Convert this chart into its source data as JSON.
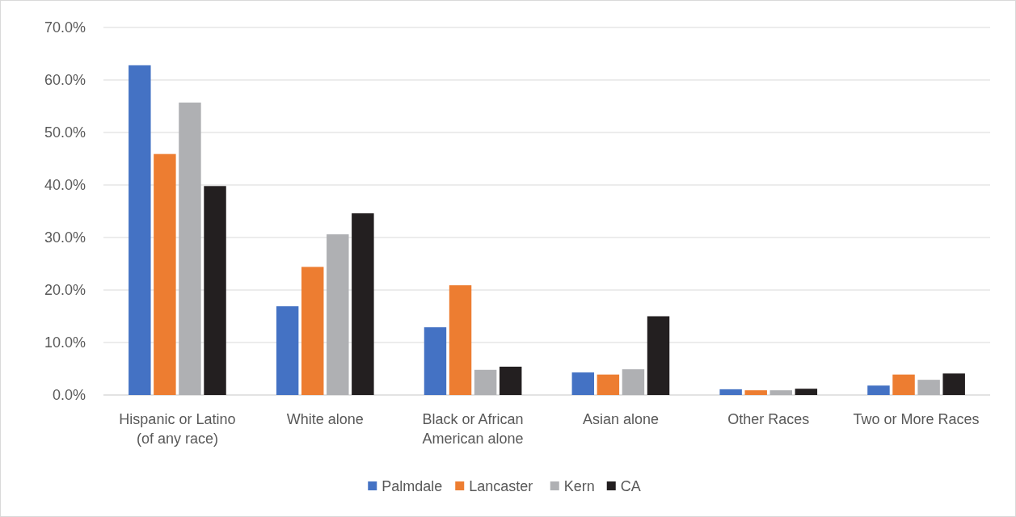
{
  "chart_data": {
    "type": "bar",
    "categories": [
      "Hispanic or Latino (of any race)",
      "White alone",
      "Black or African American alone",
      "Asian alone",
      "Other Races",
      "Two or More Races"
    ],
    "series": [
      {
        "name": "Palmdale",
        "color": "#4472c4",
        "values": [
          62.8,
          16.9,
          12.9,
          4.3,
          1.1,
          1.8
        ]
      },
      {
        "name": "Lancaster",
        "color": "#ed7d31",
        "values": [
          45.9,
          24.4,
          20.9,
          3.9,
          0.9,
          3.9
        ]
      },
      {
        "name": "Kern",
        "color": "#afb0b3",
        "values": [
          55.7,
          30.6,
          4.8,
          4.9,
          0.9,
          2.9
        ]
      },
      {
        "name": "CA",
        "color": "#231f20",
        "values": [
          39.8,
          34.6,
          5.4,
          15.0,
          1.2,
          4.1
        ]
      }
    ],
    "ylim": [
      0,
      70
    ],
    "yticks": [
      {
        "value": 0,
        "label": "0.0%"
      },
      {
        "value": 10,
        "label": "10.0%"
      },
      {
        "value": 20,
        "label": "20.0%"
      },
      {
        "value": 30,
        "label": "30.0%"
      },
      {
        "value": 40,
        "label": "40.0%"
      },
      {
        "value": 50,
        "label": "50.0%"
      },
      {
        "value": 60,
        "label": "60.0%"
      },
      {
        "value": 70,
        "label": "70.0%"
      }
    ],
    "grid": "y",
    "legend": "bottom"
  }
}
